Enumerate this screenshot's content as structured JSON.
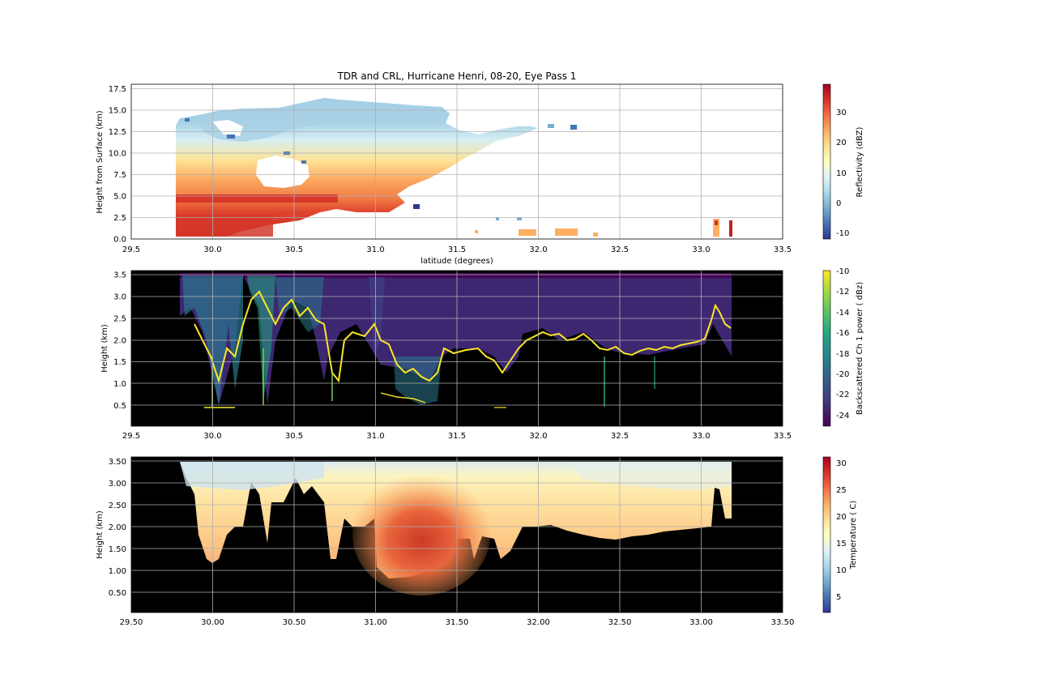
{
  "chart_data": [
    {
      "type": "heatmap",
      "title": "TDR and CRL, Hurricane Henri, 08-20, Eye Pass 1",
      "xlabel": "latitude (degrees)",
      "ylabel": "Height from Surface (km)",
      "xlim": [
        29.5,
        33.5
      ],
      "ylim": [
        0,
        18
      ],
      "xticks": [
        "29.5",
        "30.0",
        "30.5",
        "31.0",
        "31.5",
        "32.0",
        "32.5",
        "33.0",
        "33.5"
      ],
      "yticks": [
        "0.0",
        "2.5",
        "5.0",
        "7.5",
        "10.0",
        "12.5",
        "15.0",
        "17.5"
      ],
      "grid": true,
      "colorbar": {
        "label": "Reflectivity (dBZ)",
        "min": -12,
        "max": 39,
        "ticks": [
          "-10",
          "0",
          "10",
          "20",
          "30"
        ],
        "colormap": "RdYlBu_r"
      },
      "regions": {
        "data_x_range": [
          29.77,
          33.2
        ],
        "echo_top_km_max": 16.5,
        "bright_band_km": [
          4.0,
          5.0
        ]
      }
    },
    {
      "type": "heatmap",
      "title": "",
      "xlabel": "",
      "ylabel": "Height (km)",
      "xlim": [
        29.5,
        33.5
      ],
      "ylim": [
        0.0,
        3.6
      ],
      "xticks": [
        "29.5",
        "30.0",
        "30.5",
        "31.0",
        "31.5",
        "32.0",
        "32.5",
        "33.0",
        "33.5"
      ],
      "yticks": [
        "0.5",
        "1.0",
        "1.5",
        "2.0",
        "2.5",
        "3.0",
        "3.5"
      ],
      "grid": true,
      "colorbar": {
        "label": "Backscattered Ch 1 power ( dBz)",
        "min": -25,
        "max": -10,
        "ticks": [
          "-24",
          "-22",
          "-20",
          "-18",
          "-16",
          "-14",
          "-12",
          "-10"
        ],
        "colormap": "viridis"
      },
      "regions": {
        "data_x_range": [
          29.8,
          33.2
        ],
        "cloud_top_km_range": [
          0.4,
          2.9
        ]
      }
    },
    {
      "type": "heatmap",
      "title": "",
      "xlabel": "",
      "ylabel": "Height (km)",
      "xlim": [
        29.5,
        33.5
      ],
      "ylim": [
        0.0,
        3.55
      ],
      "xticks": [
        "29.50",
        "30.00",
        "30.50",
        "31.00",
        "31.50",
        "32.00",
        "32.50",
        "33.00",
        "33.50"
      ],
      "yticks": [
        "0.50",
        "1.00",
        "1.50",
        "2.00",
        "2.50",
        "3.00",
        "3.50"
      ],
      "grid": true,
      "colorbar": {
        "label": "Temperature ( C)",
        "min": 2,
        "max": 31,
        "ticks": [
          "5",
          "10",
          "15",
          "20",
          "25",
          "30"
        ],
        "colormap": "RdYlBu_r"
      },
      "regions": {
        "data_x_range": [
          29.8,
          33.2
        ],
        "warm_core_x_range": [
          31.0,
          31.6
        ],
        "warm_core_max_c": 27
      }
    }
  ]
}
